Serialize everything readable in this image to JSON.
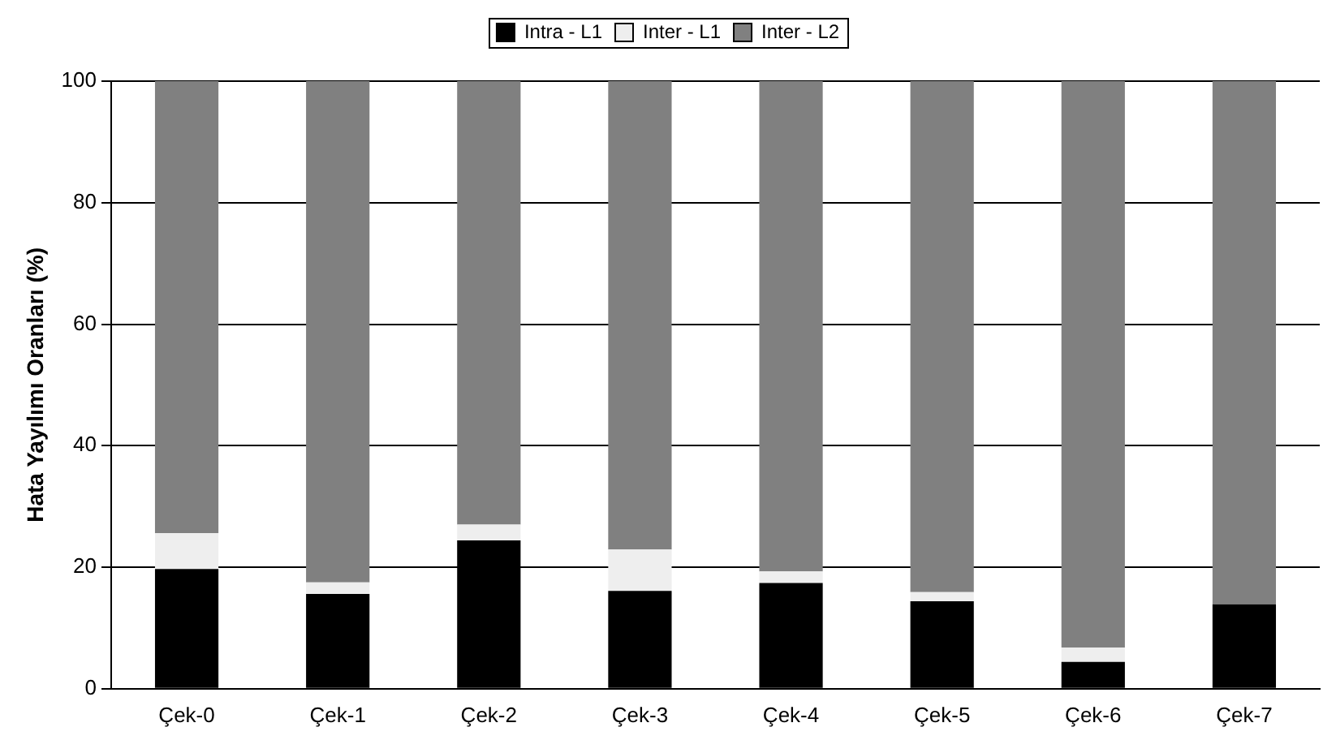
{
  "chart_data": {
    "type": "bar",
    "stacked": true,
    "ylabel": "Hata Yayılımı Oranları (%)",
    "categories": [
      "Çek-0",
      "Çek-1",
      "Çek-2",
      "Çek-3",
      "Çek-4",
      "Çek-5",
      "Çek-6",
      "Çek-7"
    ],
    "series": [
      {
        "name": "Intra - L1",
        "color": "#000000",
        "values": [
          19.7,
          15.6,
          24.4,
          16.1,
          17.4,
          14.4,
          4.4,
          13.9
        ]
      },
      {
        "name": "Inter - L1",
        "color": "#eeeeee",
        "values": [
          5.9,
          1.9,
          2.6,
          6.8,
          1.9,
          1.5,
          2.4,
          null
        ]
      },
      {
        "name": "Inter - L2",
        "color": "#808080",
        "values": [
          74.4,
          82.5,
          73.0,
          77.1,
          80.7,
          84.1,
          93.2,
          86.1
        ]
      }
    ],
    "ylim": [
      0,
      100
    ],
    "yticks": [
      0,
      20,
      40,
      60,
      80,
      100
    ],
    "grid": "y",
    "legend": "top"
  }
}
